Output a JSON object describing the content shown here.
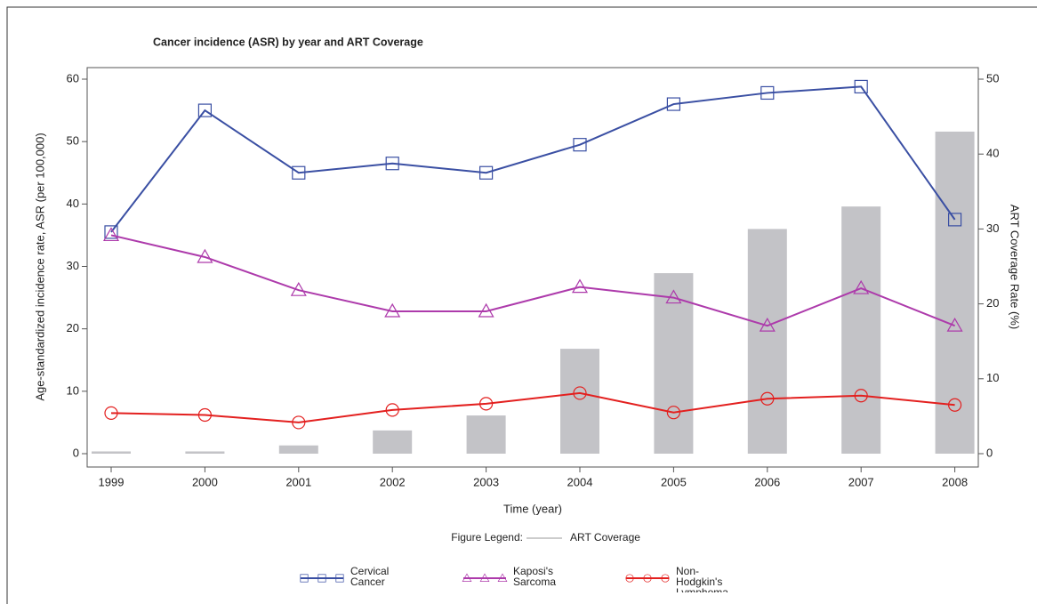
{
  "chart_data": {
    "type": "combo",
    "title": "Cancer incidence (ASR) by year and ART Coverage",
    "xlabel": "Time (year)",
    "ylabel": "Age-standardized incidence rate, ASR (per 100,000)",
    "y2label": "ART Coverage Rate (%)",
    "legend_title": "Figure Legend:",
    "categories": [
      "1999",
      "2000",
      "2001",
      "2002",
      "2003",
      "2004",
      "2005",
      "2006",
      "2007",
      "2008"
    ],
    "ylim": [
      0,
      60
    ],
    "yticks": [
      0,
      10,
      20,
      30,
      40,
      50,
      60
    ],
    "y2lim": [
      0,
      50
    ],
    "y2ticks": [
      0,
      10,
      20,
      30,
      40,
      50
    ],
    "series": [
      {
        "name": "ART Coverage",
        "type": "bar",
        "axis": "y2",
        "color": "#c3c3c7",
        "values": [
          0.3,
          0.3,
          1.1,
          3.1,
          5.1,
          14.0,
          24.1,
          30.0,
          33.0,
          43.0
        ]
      },
      {
        "name": "Cervical Cancer",
        "type": "line",
        "marker": "square",
        "color": "#3a4fa3",
        "values": [
          35.5,
          55,
          45,
          46.5,
          45,
          49.5,
          56,
          57.8,
          58.8,
          37.5
        ]
      },
      {
        "name": "Kaposi's Sarcoma",
        "type": "line",
        "marker": "triangle",
        "color": "#ad3aab",
        "values": [
          35,
          31.5,
          26.2,
          22.8,
          22.8,
          26.7,
          25,
          20.5,
          26.5,
          20.5
        ]
      },
      {
        "name": "Non-Hodgkin's Lymphoma",
        "type": "line",
        "marker": "circle",
        "color": "#e3201f",
        "values": [
          6.5,
          6.2,
          5,
          7,
          8,
          9.7,
          6.6,
          8.8,
          9.3,
          7.8
        ]
      }
    ]
  }
}
